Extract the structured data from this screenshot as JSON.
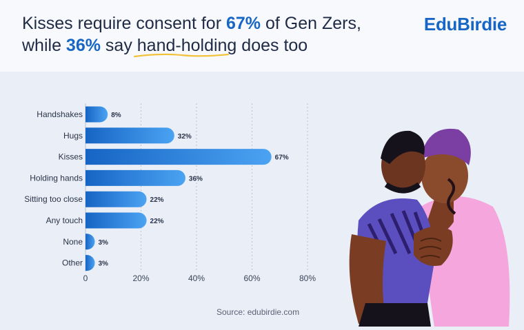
{
  "header": {
    "title_part1": "Kisses require consent for ",
    "title_hl1": "67%",
    "title_part2": " of Gen Zers,",
    "title_part3": "while ",
    "title_hl2": "36%",
    "title_part4": " say ",
    "title_underlined": "hand-holding",
    "title_part5": " does too",
    "logo": "EduBirdie"
  },
  "footer": {
    "source": "Source: edubirdie.com"
  },
  "colors": {
    "accent": "#1766c6",
    "bar_start": "#1664c4",
    "bar_end": "#4ba3f2",
    "background": "#e9eef7",
    "header_bg": "#f7f9fc",
    "underline": "#f2c23a"
  },
  "chart_data": {
    "type": "bar",
    "orientation": "horizontal",
    "categories": [
      "Handshakes",
      "Hugs",
      "Kisses",
      "Holding hands",
      "Sitting too close",
      "Any touch",
      "None",
      "Other"
    ],
    "values": [
      8,
      32,
      67,
      36,
      22,
      22,
      3,
      3
    ],
    "value_labels": [
      "8%",
      "32%",
      "67%",
      "36%",
      "22%",
      "22%",
      "3%",
      "3%"
    ],
    "x_ticks": [
      0,
      20,
      40,
      60,
      80
    ],
    "x_tick_labels": [
      "0",
      "20%",
      "40%",
      "60%",
      "80%"
    ],
    "xlim": [
      0,
      80
    ],
    "grid": true,
    "title": "Kisses require consent for 67% of Gen Zers, while 36% say hand-holding does too"
  }
}
